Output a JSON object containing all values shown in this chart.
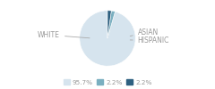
{
  "slices": [
    95.7,
    2.2,
    2.2
  ],
  "labels": [
    "WHITE",
    "ASIAN",
    "HISPANIC"
  ],
  "colors": [
    "#d6e4ee",
    "#7aafc0",
    "#2e6080"
  ],
  "legend_colors": [
    "#d6e4ee",
    "#7aafc0",
    "#2e6080"
  ],
  "legend_labels": [
    "95.7%",
    "2.2%",
    "2.2%"
  ],
  "text_color": "#999999",
  "line_color": "#aaaaaa",
  "bg_color": "#ffffff",
  "startangle": 90
}
